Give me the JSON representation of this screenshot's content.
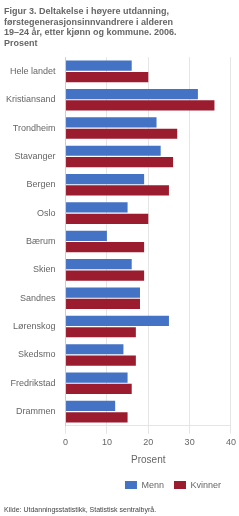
{
  "chart_data": {
    "type": "bar",
    "orientation": "horizontal",
    "title": [
      "Figur 3. Deltakelse i høyere utdanning,",
      "førstegenerasjonsinnvandrere i alderen",
      "19–24 år, etter kjønn og kommune. 2006.",
      "Prosent"
    ],
    "annotations": [
      "Kilde: Utdanningsstatistikk, Statistisk sentralbyrå."
    ],
    "categories": [
      "Hele landet",
      "Kristiansand",
      "Trondheim",
      "Stavanger",
      "Bergen",
      "Oslo",
      "Bærum",
      "Skien",
      "Sandnes",
      "Lørenskog",
      "Skedsmo",
      "Fredrikstad",
      "Drammen"
    ],
    "series": [
      {
        "name": "Menn",
        "color": "#4472C4",
        "values": [
          16,
          32,
          22,
          23,
          19,
          15,
          10,
          16,
          18,
          25,
          14,
          15,
          12
        ]
      },
      {
        "name": "Kvinner",
        "color": "#9B1C2E",
        "values": [
          20,
          36,
          27,
          26,
          25,
          20,
          19,
          19,
          18,
          17,
          17,
          16,
          15
        ]
      }
    ],
    "xlabel": "Prosent",
    "xlim": [
      0,
      40
    ],
    "xticks": [
      0,
      10,
      20,
      30,
      40
    ],
    "grid": true,
    "legend": "lower right"
  }
}
